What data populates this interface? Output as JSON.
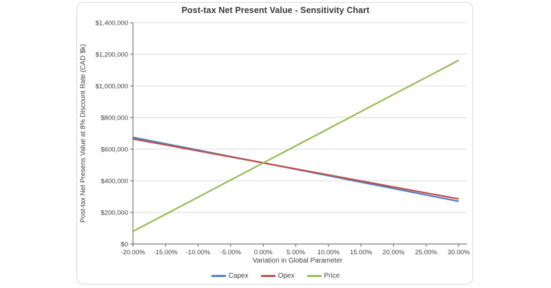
{
  "chart_data": {
    "type": "line",
    "title": "Post-tax Net Present Value - Sensitivity Chart",
    "xlabel": "Variation in Global Parameter",
    "ylabel": "Post-tax Net Presens Value at 8% Discount Rate (CAD $k)",
    "categories": [
      "-20.00%",
      "-15.00%",
      "-10.00%",
      "-5.00%",
      "0.00%",
      "5.00%",
      "10.00%",
      "15.00%",
      "20.00%",
      "25.00%",
      "30.00%"
    ],
    "yticks": [
      {
        "label": "$0",
        "value": 0
      },
      {
        "label": "$200,000",
        "value": 200000
      },
      {
        "label": "$400,000",
        "value": 400000
      },
      {
        "label": "$600,000",
        "value": 600000
      },
      {
        "label": "$800,000",
        "value": 800000
      },
      {
        "label": "$1,000,000",
        "value": 1000000
      },
      {
        "label": "$1,200,000",
        "value": 1200000
      },
      {
        "label": "$1,400,000",
        "value": 1400000
      }
    ],
    "ylim": [
      0,
      1400000
    ],
    "grid": "horizontal",
    "legend_position": "bottom",
    "series": [
      {
        "name": "Capex",
        "color": "#4F81BD",
        "values": [
          675000,
          634500,
          594000,
          553500,
          513000,
          472500,
          432000,
          391500,
          351000,
          310500,
          270000
        ]
      },
      {
        "name": "Opex",
        "color": "#C0504D",
        "values": [
          665000,
          627000,
          589000,
          551000,
          513000,
          475000,
          437000,
          399000,
          361000,
          323000,
          285000
        ]
      },
      {
        "name": "Price",
        "color": "#9BBB59",
        "values": [
          80000,
          188000,
          296000,
          405000,
          513000,
          621000,
          729000,
          838000,
          946000,
          1054000,
          1162000
        ]
      }
    ],
    "colors": {
      "gridline": "#D9D9D9",
      "axis": "#595959",
      "text": "#404040",
      "frame_border": "#D9D9D9"
    }
  }
}
